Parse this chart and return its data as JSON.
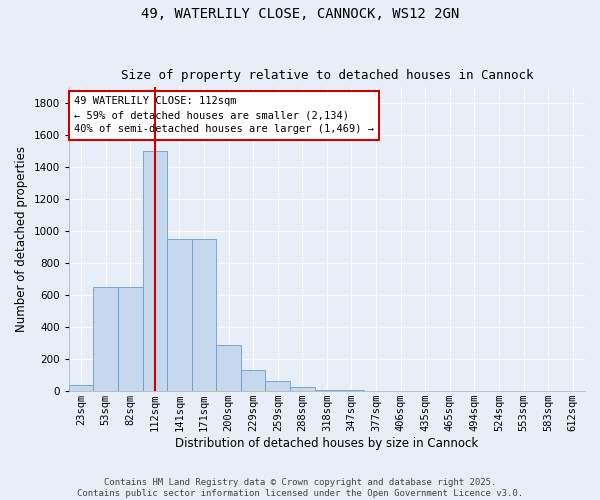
{
  "title": "49, WATERLILY CLOSE, CANNOCK, WS12 2GN",
  "subtitle": "Size of property relative to detached houses in Cannock",
  "xlabel": "Distribution of detached houses by size in Cannock",
  "ylabel": "Number of detached properties",
  "categories": [
    "23sqm",
    "53sqm",
    "82sqm",
    "112sqm",
    "141sqm",
    "171sqm",
    "200sqm",
    "229sqm",
    "259sqm",
    "288sqm",
    "318sqm",
    "347sqm",
    "377sqm",
    "406sqm",
    "435sqm",
    "465sqm",
    "494sqm",
    "524sqm",
    "553sqm",
    "583sqm",
    "612sqm"
  ],
  "values": [
    40,
    650,
    650,
    1500,
    950,
    950,
    290,
    130,
    65,
    25,
    10,
    5,
    2,
    1,
    0,
    0,
    0,
    0,
    0,
    0,
    0
  ],
  "bar_color": "#c5d8ee",
  "bar_edge_color": "#6b9fc8",
  "red_line_x": 3.0,
  "annotation_text": "49 WATERLILY CLOSE: 112sqm\n← 59% of detached houses are smaller (2,134)\n40% of semi-detached houses are larger (1,469) →",
  "annotation_box_color": "#ffffff",
  "annotation_box_edgecolor": "#cc0000",
  "ylim": [
    0,
    1900
  ],
  "yticks": [
    0,
    200,
    400,
    600,
    800,
    1000,
    1200,
    1400,
    1600,
    1800
  ],
  "background_color": "#e8eef8",
  "grid_color": "#ffffff",
  "fig_bg_color": "#e8eef8",
  "footer_line1": "Contains HM Land Registry data © Crown copyright and database right 2025.",
  "footer_line2": "Contains public sector information licensed under the Open Government Licence v3.0.",
  "title_fontsize": 10,
  "subtitle_fontsize": 9,
  "axis_label_fontsize": 8.5,
  "tick_fontsize": 7.5,
  "annotation_fontsize": 7.5,
  "footer_fontsize": 6.5
}
